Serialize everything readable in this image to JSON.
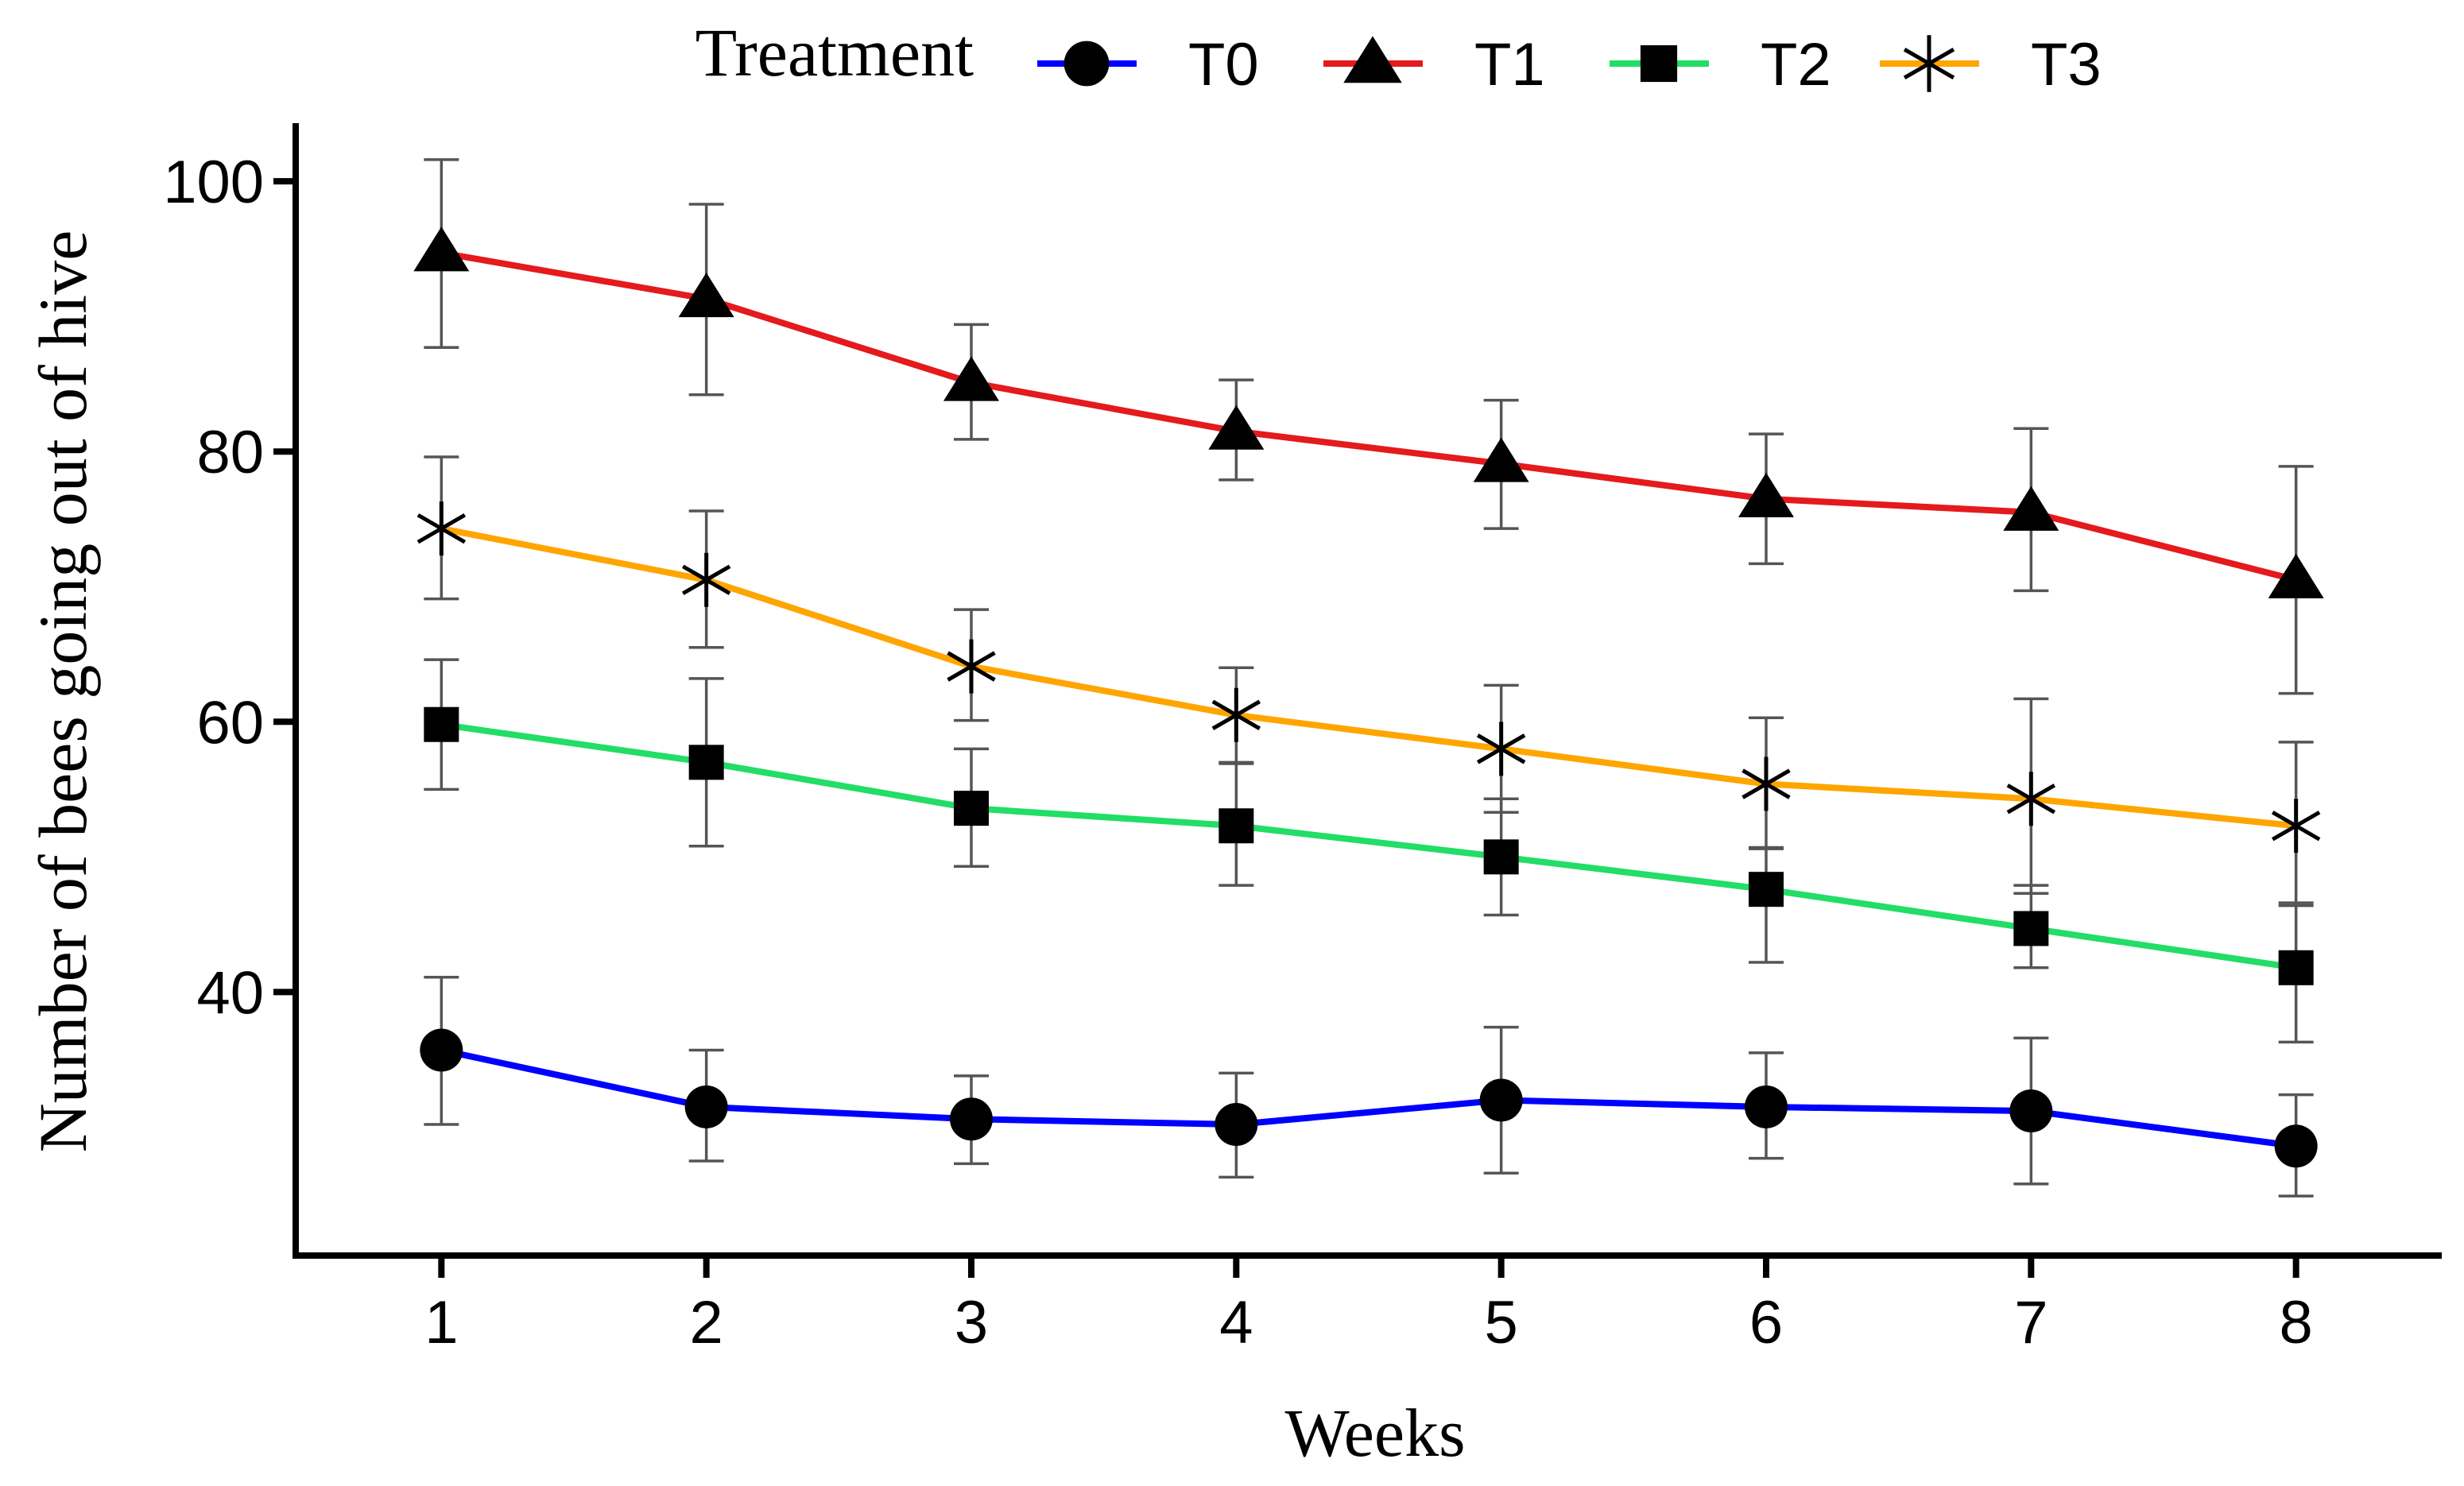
{
  "chart_data": {
    "type": "line",
    "x": [
      1,
      2,
      3,
      4,
      5,
      6,
      7,
      8
    ],
    "xlabel": "Weeks",
    "ylabel": "Number of bees going out of hive",
    "ylim": [
      20.5,
      104.3
    ],
    "xlim": [
      0.45,
      8.55
    ],
    "yticks": [
      40,
      60,
      80,
      100
    ],
    "grid": false,
    "legend": {
      "title": "Treatment",
      "placement": "top"
    },
    "series": [
      {
        "name": "T0",
        "color": "#0000ff",
        "marker": "circle",
        "values": [
          35.7,
          31.5,
          30.6,
          30.2,
          32.0,
          31.5,
          31.2,
          28.6
        ],
        "err_low": [
          30.2,
          27.5,
          27.3,
          26.3,
          26.6,
          27.7,
          25.8,
          24.9
        ],
        "err_high": [
          41.1,
          35.7,
          33.8,
          34.0,
          37.4,
          35.5,
          36.6,
          32.4
        ]
      },
      {
        "name": "T1",
        "color": "#e41a1c",
        "marker": "triangle",
        "values": [
          94.7,
          91.3,
          85.1,
          81.5,
          79.1,
          76.5,
          75.5,
          70.5
        ],
        "err_low": [
          87.7,
          84.2,
          80.9,
          77.9,
          74.3,
          71.7,
          69.7,
          62.1
        ],
        "err_high": [
          101.6,
          98.3,
          89.4,
          85.3,
          83.8,
          81.3,
          81.7,
          78.9
        ]
      },
      {
        "name": "T2",
        "color": "#22dd66",
        "marker": "square",
        "values": [
          59.8,
          57.0,
          53.6,
          52.3,
          50.0,
          47.6,
          44.7,
          41.8
        ],
        "err_low": [
          55.0,
          50.8,
          49.3,
          47.9,
          45.7,
          42.2,
          41.8,
          36.3
        ],
        "err_high": [
          64.6,
          63.2,
          58.0,
          56.9,
          54.3,
          50.6,
          47.9,
          46.6
        ]
      },
      {
        "name": "T3",
        "color": "#ffa500",
        "marker": "star",
        "values": [
          74.3,
          70.5,
          64.1,
          60.5,
          58.0,
          55.4,
          54.3,
          52.3
        ],
        "err_low": [
          69.1,
          65.5,
          60.1,
          57.0,
          53.3,
          50.7,
          47.3,
          46.4
        ],
        "err_high": [
          79.6,
          75.6,
          68.3,
          64.0,
          62.7,
          60.3,
          61.7,
          58.5
        ]
      }
    ]
  }
}
